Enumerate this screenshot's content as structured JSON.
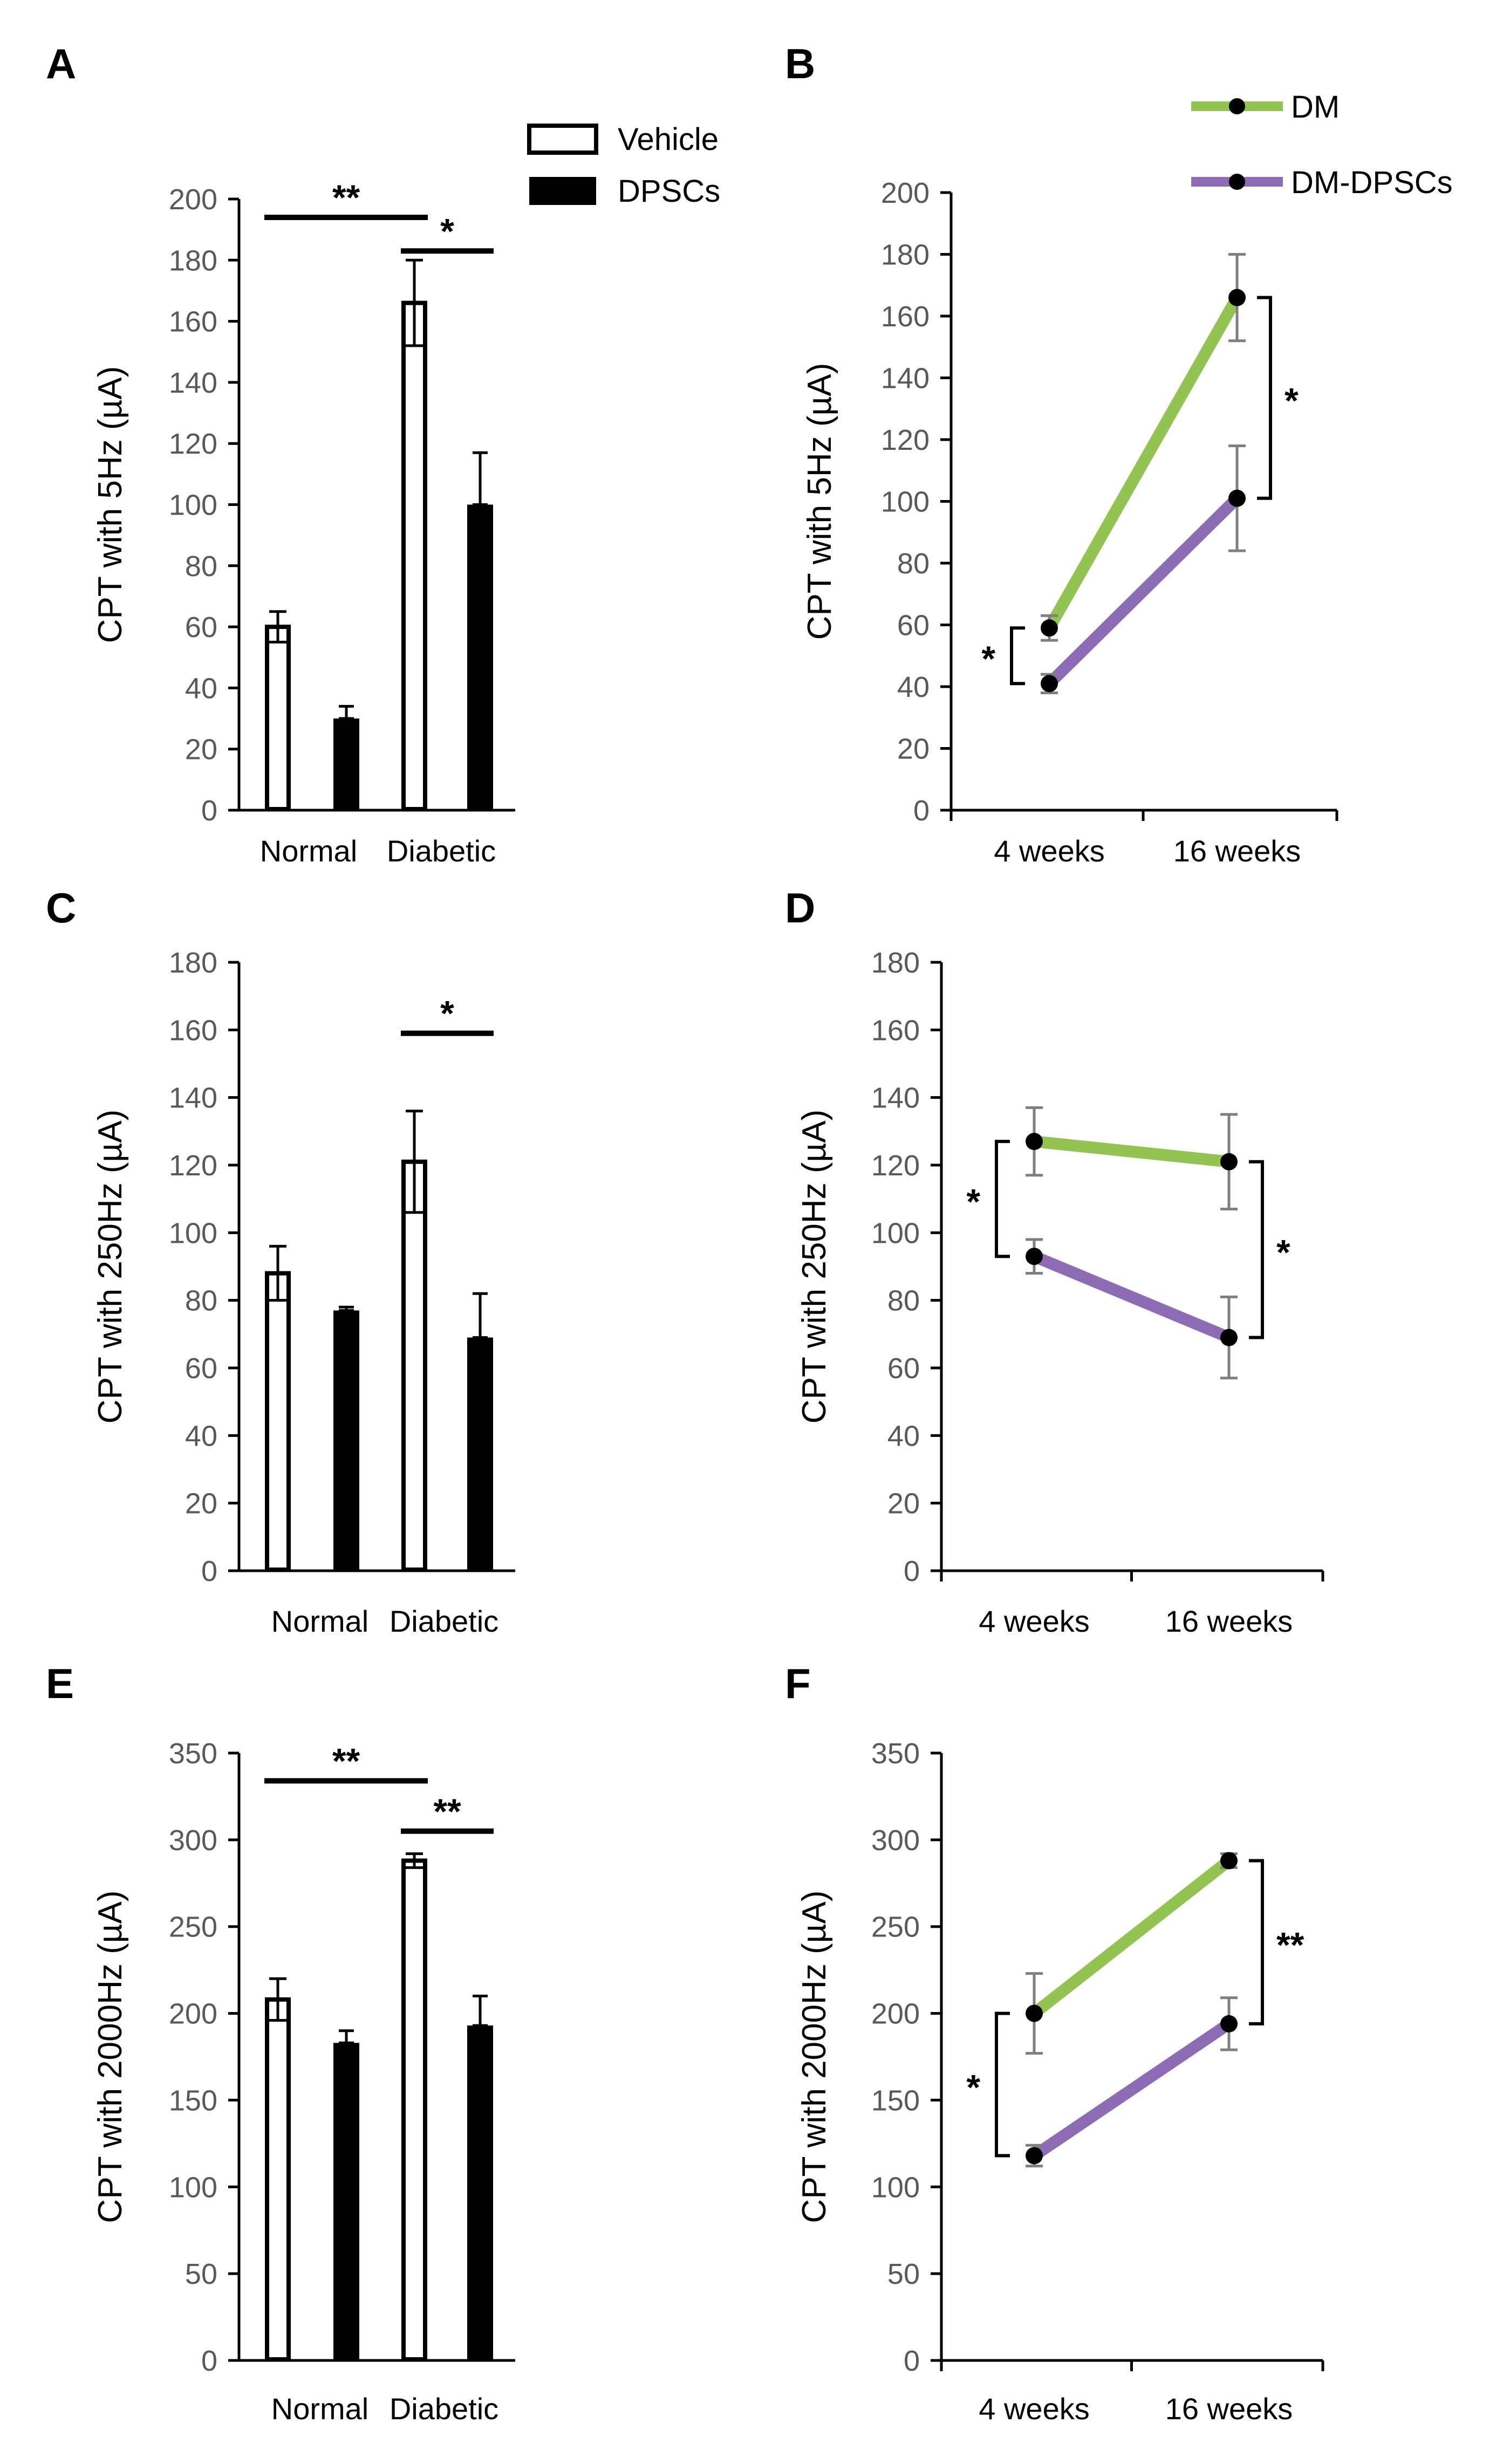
{
  "figure": {
    "legend_bar": [
      {
        "label": "Vehicle",
        "fill": "#ffffff"
      },
      {
        "label": "DPSCs",
        "fill": "#000000"
      }
    ],
    "legend_line": [
      {
        "label": "DM",
        "color": "#92c353"
      },
      {
        "label": "DM-DPSCs",
        "color": "#8e6bb5"
      }
    ]
  },
  "chart_data": [
    {
      "panel": "A",
      "type": "bar",
      "ylabel": "CPT with 5Hz (µA)",
      "ylim": [
        0,
        200
      ],
      "yticks": [
        0,
        20,
        40,
        60,
        80,
        100,
        120,
        140,
        160,
        180,
        200
      ],
      "categories": [
        "Normal",
        "Diabetic"
      ],
      "series": [
        {
          "name": "Vehicle",
          "values": [
            60,
            166
          ],
          "errors": [
            5,
            14
          ]
        },
        {
          "name": "DPSCs",
          "values": [
            30,
            100
          ],
          "errors": [
            4,
            17
          ]
        }
      ],
      "annotations": [
        {
          "text": "**",
          "from": "Normal-Vehicle",
          "to": "Diabetic-Vehicle",
          "y": 194
        },
        {
          "text": "*",
          "from": "Diabetic-Vehicle",
          "to": "Diabetic-DPSCs",
          "y": 183
        }
      ]
    },
    {
      "panel": "B",
      "type": "line",
      "ylabel": "CPT with 5Hz (µA)",
      "ylim": [
        0,
        200
      ],
      "yticks": [
        0,
        20,
        40,
        60,
        80,
        100,
        120,
        140,
        160,
        180,
        200
      ],
      "x": [
        "4 weeks",
        "16 weeks"
      ],
      "series": [
        {
          "name": "DM",
          "values": [
            59,
            166
          ],
          "errors": [
            4,
            14
          ]
        },
        {
          "name": "DM-DPSCs",
          "values": [
            41,
            101
          ],
          "errors": [
            3,
            17
          ]
        }
      ],
      "annotations": [
        {
          "text": "*",
          "at": "4 weeks",
          "side": "left"
        },
        {
          "text": "*",
          "at": "16 weeks",
          "side": "right"
        }
      ]
    },
    {
      "panel": "C",
      "type": "bar",
      "ylabel": "CPT with 250Hz (µA)",
      "ylim": [
        0,
        180
      ],
      "yticks": [
        0,
        20,
        40,
        60,
        80,
        100,
        120,
        140,
        160,
        180
      ],
      "categories": [
        "Normal",
        "Diabetic"
      ],
      "series": [
        {
          "name": "Vehicle",
          "values": [
            88,
            121
          ],
          "errors": [
            8,
            15
          ]
        },
        {
          "name": "DPSCs",
          "values": [
            77,
            69
          ],
          "errors": [
            1,
            13
          ]
        }
      ],
      "annotations": [
        {
          "text": "*",
          "from": "Diabetic-Vehicle",
          "to": "Diabetic-DPSCs",
          "y": 159
        }
      ]
    },
    {
      "panel": "D",
      "type": "line",
      "ylabel": "CPT with 250Hz (µA)",
      "ylim": [
        0,
        180
      ],
      "yticks": [
        0,
        20,
        40,
        60,
        80,
        100,
        120,
        140,
        160,
        180
      ],
      "x": [
        "4 weeks",
        "16 weeks"
      ],
      "series": [
        {
          "name": "DM",
          "values": [
            127,
            121
          ],
          "errors": [
            10,
            14
          ]
        },
        {
          "name": "DM-DPSCs",
          "values": [
            93,
            69
          ],
          "errors": [
            5,
            12
          ]
        }
      ],
      "annotations": [
        {
          "text": "*",
          "at": "4 weeks",
          "side": "left"
        },
        {
          "text": "*",
          "at": "16 weeks",
          "side": "right"
        }
      ]
    },
    {
      "panel": "E",
      "type": "bar",
      "ylabel": "CPT with 2000Hz (µA)",
      "ylim": [
        0,
        350
      ],
      "yticks": [
        0,
        50,
        100,
        150,
        200,
        250,
        300,
        350
      ],
      "categories": [
        "Normal",
        "Diabetic"
      ],
      "series": [
        {
          "name": "Vehicle",
          "values": [
            208,
            288
          ],
          "errors": [
            12,
            4
          ]
        },
        {
          "name": "DPSCs",
          "values": [
            183,
            193
          ],
          "errors": [
            7,
            17
          ]
        }
      ],
      "annotations": [
        {
          "text": "**",
          "from": "Normal-Vehicle",
          "to": "Diabetic-Vehicle",
          "y": 334
        },
        {
          "text": "**",
          "from": "Diabetic-Vehicle",
          "to": "Diabetic-DPSCs",
          "y": 305
        }
      ]
    },
    {
      "panel": "F",
      "type": "line",
      "ylabel": "CPT with 2000Hz (µA)",
      "ylim": [
        0,
        350
      ],
      "yticks": [
        0,
        50,
        100,
        150,
        200,
        250,
        300,
        350
      ],
      "x": [
        "4 weeks",
        "16 weeks"
      ],
      "series": [
        {
          "name": "DM",
          "values": [
            200,
            288
          ],
          "errors": [
            23,
            4
          ]
        },
        {
          "name": "DM-DPSCs",
          "values": [
            118,
            194
          ],
          "errors": [
            6,
            15
          ]
        }
      ],
      "annotations": [
        {
          "text": "*",
          "at": "4 weeks",
          "side": "left"
        },
        {
          "text": "**",
          "at": "16 weeks",
          "side": "right"
        }
      ]
    }
  ]
}
